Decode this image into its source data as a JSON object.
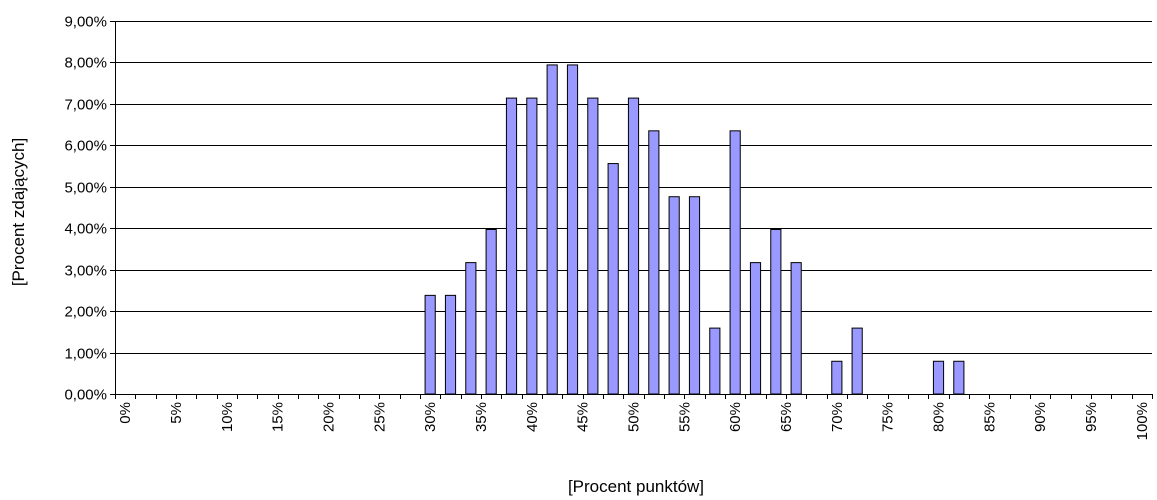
{
  "chart_data": {
    "type": "bar",
    "xlabel": "[Procent punktów]",
    "ylabel": "[Procent zdających]",
    "ylim": [
      0,
      9
    ],
    "y_ticks": [
      "0,00%",
      "1,00%",
      "2,00%",
      "3,00%",
      "4,00%",
      "5,00%",
      "6,00%",
      "7,00%",
      "8,00%",
      "9,00%"
    ],
    "x_tick_labels": [
      "0%",
      "5%",
      "10%",
      "15%",
      "20%",
      "25%",
      "30%",
      "35%",
      "40%",
      "45%",
      "50%",
      "55%",
      "60%",
      "65%",
      "70%",
      "75%",
      "80%",
      "85%",
      "90%",
      "95%",
      "100%"
    ],
    "grid": "horizontal",
    "bar_color": "#9999ff",
    "x": [
      "0%",
      "2%",
      "4%",
      "6%",
      "8%",
      "10%",
      "12%",
      "14%",
      "16%",
      "18%",
      "20%",
      "22%",
      "24%",
      "26%",
      "28%",
      "30%",
      "32%",
      "34%",
      "36%",
      "38%",
      "40%",
      "42%",
      "44%",
      "46%",
      "48%",
      "50%",
      "52%",
      "54%",
      "56%",
      "58%",
      "60%",
      "62%",
      "64%",
      "66%",
      "68%",
      "70%",
      "72%",
      "74%",
      "76%",
      "78%",
      "80%",
      "82%",
      "84%",
      "86%",
      "88%",
      "90%",
      "92%",
      "94%",
      "96%",
      "98%",
      "100%"
    ],
    "values": [
      0,
      0,
      0,
      0,
      0,
      0,
      0,
      0,
      0,
      0,
      0,
      0,
      0,
      0,
      0,
      2.38,
      2.38,
      3.17,
      3.97,
      7.14,
      7.14,
      7.94,
      7.94,
      7.14,
      5.56,
      7.14,
      6.35,
      4.76,
      4.76,
      1.59,
      6.35,
      3.17,
      3.97,
      3.17,
      0,
      0.79,
      1.59,
      0,
      0,
      0,
      0.79,
      0.79,
      0,
      0,
      0,
      0,
      0,
      0,
      0,
      0,
      0
    ]
  }
}
